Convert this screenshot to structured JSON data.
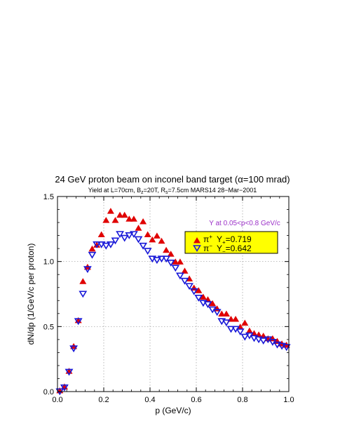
{
  "chart_data": {
    "type": "scatter",
    "title": "24 GeV proton beam on inconel band target (α=100 mrad)",
    "subtitle": {
      "prefix": "Yield at L=70cm, B",
      "b_sub": "z",
      "middle": "=20T, R",
      "r_sub": "s",
      "suffix": "=7.5cm    MARS14      28−Mar−2001"
    },
    "xlabel": "p (GeV/c)",
    "ylabel": "dN/dp (1/GeV/c per proton)",
    "xlim": [
      0.0,
      1.0
    ],
    "ylim": [
      0.0,
      1.5
    ],
    "xticks": [
      "0.0",
      "0.2",
      "0.4",
      "0.6",
      "0.8",
      "1.0"
    ],
    "yticks": [
      "0.0",
      "0.5",
      "1.0",
      "1.5"
    ],
    "grid": true,
    "annotation": "Y at 0.05<p<0.8 GeV/c",
    "annotation_color": "#9b30c8",
    "legend": {
      "position": "top-right",
      "background": "#ffff00",
      "entries": [
        {
          "sym": "π",
          "sup": "+",
          "label": "Y",
          "sub": "+",
          "value": "=0.719"
        },
        {
          "sym": "π",
          "sup": "−",
          "label": "Y",
          "sub": "−",
          "value": "=0.642"
        }
      ]
    },
    "series": [
      {
        "marker": "filled-triangle-up",
        "color": "#e00000",
        "x": [
          0.01,
          0.03,
          0.05,
          0.07,
          0.09,
          0.11,
          0.13,
          0.15,
          0.17,
          0.19,
          0.21,
          0.23,
          0.25,
          0.27,
          0.29,
          0.31,
          0.33,
          0.35,
          0.37,
          0.39,
          0.41,
          0.43,
          0.45,
          0.47,
          0.49,
          0.51,
          0.53,
          0.55,
          0.57,
          0.59,
          0.61,
          0.63,
          0.65,
          0.67,
          0.69,
          0.71,
          0.73,
          0.75,
          0.77,
          0.79,
          0.81,
          0.83,
          0.85,
          0.87,
          0.89,
          0.91,
          0.93,
          0.95,
          0.97,
          0.99
        ],
        "y": [
          0.01,
          0.04,
          0.16,
          0.35,
          0.55,
          0.85,
          0.96,
          1.1,
          1.13,
          1.21,
          1.32,
          1.39,
          1.32,
          1.36,
          1.36,
          1.33,
          1.33,
          1.26,
          1.31,
          1.21,
          1.17,
          1.2,
          1.16,
          1.09,
          1.06,
          1.0,
          1.0,
          0.93,
          0.87,
          0.8,
          0.78,
          0.73,
          0.71,
          0.68,
          0.64,
          0.6,
          0.6,
          0.56,
          0.56,
          0.5,
          0.53,
          0.47,
          0.45,
          0.44,
          0.43,
          0.41,
          0.41,
          0.39,
          0.37,
          0.36
        ]
      },
      {
        "marker": "open-triangle-down",
        "color": "#1818d8",
        "x": [
          0.01,
          0.03,
          0.05,
          0.07,
          0.09,
          0.11,
          0.13,
          0.15,
          0.17,
          0.19,
          0.21,
          0.23,
          0.25,
          0.27,
          0.29,
          0.31,
          0.33,
          0.35,
          0.37,
          0.39,
          0.41,
          0.43,
          0.45,
          0.47,
          0.49,
          0.51,
          0.53,
          0.55,
          0.57,
          0.59,
          0.61,
          0.63,
          0.65,
          0.67,
          0.69,
          0.71,
          0.73,
          0.75,
          0.77,
          0.79,
          0.81,
          0.83,
          0.85,
          0.87,
          0.89,
          0.91,
          0.93,
          0.95,
          0.97,
          0.99
        ],
        "y": [
          0.0,
          0.03,
          0.15,
          0.33,
          0.54,
          0.75,
          0.94,
          1.05,
          1.13,
          1.13,
          1.12,
          1.13,
          1.16,
          1.21,
          1.18,
          1.2,
          1.21,
          1.17,
          1.12,
          1.08,
          1.02,
          1.01,
          1.02,
          1.02,
          0.99,
          0.95,
          0.89,
          0.85,
          0.81,
          0.77,
          0.72,
          0.68,
          0.67,
          0.63,
          0.61,
          0.54,
          0.53,
          0.48,
          0.48,
          0.46,
          0.42,
          0.43,
          0.41,
          0.4,
          0.39,
          0.4,
          0.38,
          0.36,
          0.35,
          0.34
        ]
      }
    ]
  }
}
